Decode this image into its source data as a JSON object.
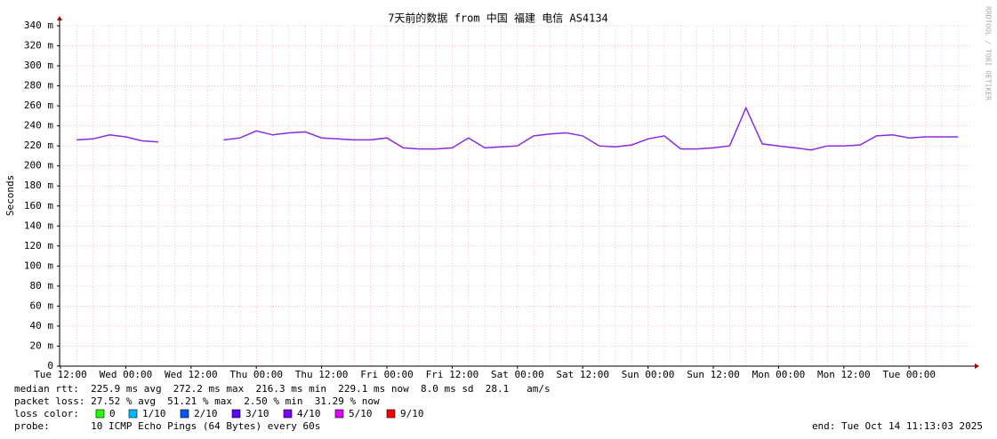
{
  "chart_data": {
    "type": "line",
    "title": "7天前的数据 from 中国 福建 电信 AS4134",
    "y_label": "Seconds",
    "side_label": "RRDTOOL / TOBI OETIKER",
    "ylim": [
      0,
      0.34
    ],
    "yticks": [
      {
        "value": 0,
        "label": "0"
      },
      {
        "value": 0.02,
        "label": "20 m"
      },
      {
        "value": 0.04,
        "label": "40 m"
      },
      {
        "value": 0.06,
        "label": "60 m"
      },
      {
        "value": 0.08,
        "label": "80 m"
      },
      {
        "value": 0.1,
        "label": "100 m"
      },
      {
        "value": 0.12,
        "label": "120 m"
      },
      {
        "value": 0.14,
        "label": "140 m"
      },
      {
        "value": 0.16,
        "label": "160 m"
      },
      {
        "value": 0.18,
        "label": "180 m"
      },
      {
        "value": 0.2,
        "label": "200 m"
      },
      {
        "value": 0.22,
        "label": "220 m"
      },
      {
        "value": 0.24,
        "label": "240 m"
      },
      {
        "value": 0.26,
        "label": "260 m"
      },
      {
        "value": 0.28,
        "label": "280 m"
      },
      {
        "value": 0.3,
        "label": "300 m"
      },
      {
        "value": 0.32,
        "label": "320 m"
      },
      {
        "value": 0.34,
        "label": "340 m"
      }
    ],
    "grid": true,
    "categories": [
      "Tue 12:00",
      null,
      null,
      null,
      "Wed 00:00",
      null,
      null,
      null,
      "Wed 12:00",
      null,
      null,
      null,
      "Thu 00:00",
      null,
      null,
      null,
      "Thu 12:00",
      null,
      null,
      null,
      "Fri 00:00",
      null,
      null,
      null,
      "Fri 12:00",
      null,
      null,
      null,
      "Sat 00:00",
      null,
      null,
      null,
      "Sat 12:00",
      null,
      null,
      null,
      "Sun 00:00",
      null,
      null,
      null,
      "Sun 12:00",
      null,
      null,
      null,
      "Mon 00:00",
      null,
      null,
      null,
      "Mon 12:00",
      null,
      null,
      null,
      "Tue 00:00",
      null,
      null,
      null
    ],
    "series": [
      {
        "color": "#8a2be2",
        "values": [
          null,
          0.226,
          0.227,
          0.231,
          0.229,
          0.225,
          0.224,
          null,
          null,
          null,
          0.226,
          0.228,
          0.235,
          0.231,
          0.233,
          0.234,
          0.228,
          0.227,
          0.226,
          0.226,
          0.228,
          0.218,
          0.217,
          0.217,
          0.218,
          0.228,
          0.218,
          0.219,
          0.22,
          0.23,
          0.232,
          0.233,
          0.23,
          0.22,
          0.219,
          0.221,
          0.227,
          0.23,
          0.217,
          0.217,
          0.218,
          0.22,
          0.258,
          0.222,
          0.22,
          0.218,
          0.216,
          0.22,
          0.22,
          0.221,
          0.23,
          0.231,
          0.228,
          0.229,
          0.229,
          0.229
        ]
      }
    ]
  },
  "footer": {
    "median_rtt": "median rtt:  225.9 ms avg  272.2 ms max  216.3 ms min  229.1 ms now  8.0 ms sd  28.1   am/s",
    "packet_loss": "packet loss: 27.52 % avg  51.21 % max  2.50 % min  31.29 % now",
    "loss_color_label": "loss color:",
    "loss_colors": [
      {
        "label": "0",
        "color": "#26ff00"
      },
      {
        "label": "1/10",
        "color": "#00b8ff"
      },
      {
        "label": "2/10",
        "color": "#0059ff"
      },
      {
        "label": "3/10",
        "color": "#5e00ff"
      },
      {
        "label": "4/10",
        "color": "#7e00ff"
      },
      {
        "label": "5/10",
        "color": "#dd00ff"
      },
      {
        "label": "9/10",
        "color": "#ff0000"
      }
    ],
    "probe": "probe:       10 ICMP Echo Pings (64 Bytes) every 60s",
    "end": "end: Tue Oct 14 11:13:03 2025"
  }
}
